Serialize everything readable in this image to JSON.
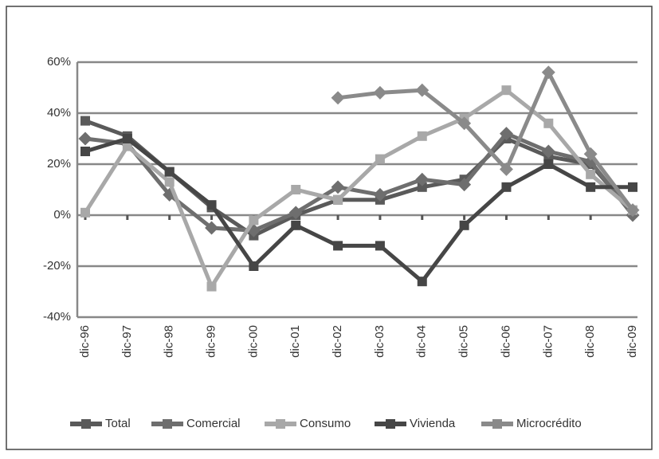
{
  "chart_data": {
    "type": "line",
    "categories": [
      "dic-96",
      "dic-97",
      "dic-98",
      "dic-99",
      "dic-00",
      "dic-01",
      "dic-02",
      "dic-03",
      "dic-04",
      "dic-05",
      "dic-06",
      "dic-07",
      "dic-08",
      "dic-09"
    ],
    "series": [
      {
        "name": "Total",
        "color": "#5a5a5a",
        "values": [
          37,
          31,
          17,
          3,
          -8,
          0,
          6,
          6,
          11,
          14,
          30,
          23,
          20,
          1
        ]
      },
      {
        "name": "Comercial",
        "color": "#6e6e6e",
        "values": [
          30,
          28,
          8,
          -5,
          -6,
          1,
          11,
          8,
          14,
          12,
          32,
          25,
          21,
          0
        ]
      },
      {
        "name": "Consumo",
        "color": "#a8a8a8",
        "values": [
          1,
          27,
          13,
          -28,
          -2,
          10,
          6,
          22,
          31,
          38,
          49,
          36,
          16,
          2
        ]
      },
      {
        "name": "Vivienda",
        "color": "#464646",
        "values": [
          25,
          30,
          17,
          4,
          -20,
          -4,
          -12,
          -12,
          -26,
          -4,
          11,
          20,
          11,
          11
        ]
      },
      {
        "name": "Microcrédito",
        "color": "#8a8a8a",
        "values": [
          null,
          null,
          null,
          null,
          null,
          null,
          46,
          48,
          49,
          36,
          18,
          56,
          24,
          2
        ]
      }
    ],
    "ylim": [
      -40,
      60
    ],
    "yticks": [
      {
        "value": -40,
        "label": "-40%"
      },
      {
        "value": -20,
        "label": "-20%"
      },
      {
        "value": 0,
        "label": "0%"
      },
      {
        "value": 20,
        "label": "20%"
      },
      {
        "value": 40,
        "label": "40%"
      },
      {
        "value": 60,
        "label": "60%"
      }
    ],
    "grid": true
  }
}
